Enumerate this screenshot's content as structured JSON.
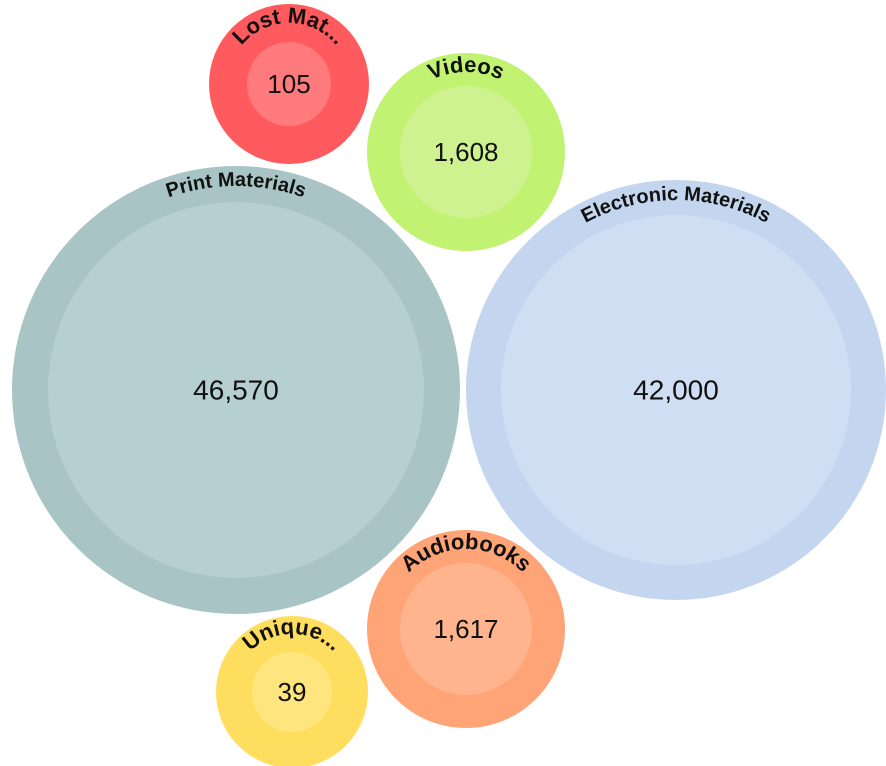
{
  "chart_data": {
    "type": "bubble",
    "items": [
      {
        "label": "Print Materials",
        "value": 46570,
        "value_label": "46,570",
        "outer_color": "#a8c4c4",
        "inner_color": "#b6cfd0"
      },
      {
        "label": "Electronic Materials",
        "value": 42000,
        "value_label": "42,000",
        "outer_color": "#c4d6ef",
        "inner_color": "#d0def3"
      },
      {
        "label": "Lost Mat...",
        "value": 105,
        "value_label": "105",
        "outer_color": "#ff5a5e",
        "inner_color": "#ff7a7c"
      },
      {
        "label": "Videos",
        "value": 1608,
        "value_label": "1,608",
        "outer_color": "#c2f272",
        "inner_color": "#cff290"
      },
      {
        "label": "Audiobooks",
        "value": 1617,
        "value_label": "1,617",
        "outer_color": "#ffa477",
        "inner_color": "#ffb48e"
      },
      {
        "label": "Unique...",
        "value": 39,
        "value_label": "39",
        "outer_color": "#ffdd5e",
        "inner_color": "#ffe57e"
      }
    ]
  }
}
